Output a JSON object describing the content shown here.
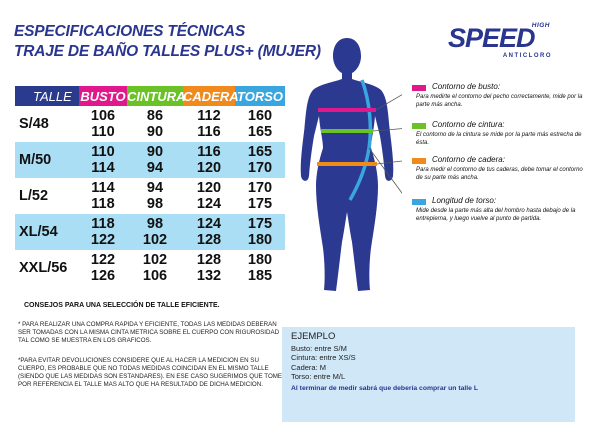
{
  "title": {
    "line1": "ESPECIFICACIONES TÉCNICAS",
    "line2": "TRAJE DE BAÑO TALLES PLUS+ (MUJER)"
  },
  "brand": {
    "top": "HIGH",
    "name": "SPEED",
    "sub": "ANTICLORO",
    "color": "#2a3590"
  },
  "table": {
    "headers": [
      "TALLE",
      "BUSTO",
      "CINTURA",
      "CADERA",
      "TORSO"
    ],
    "header_colors": [
      "#2a3a8c",
      "#e0188c",
      "#6ac226",
      "#f08a1c",
      "#39a6df"
    ],
    "rows": [
      {
        "size": "S/48",
        "busto": [
          "106",
          "110"
        ],
        "cintura": [
          "86",
          "90"
        ],
        "cadera": [
          "112",
          "116"
        ],
        "torso": [
          "160",
          "165"
        ]
      },
      {
        "size": "M/50",
        "busto": [
          "110",
          "114"
        ],
        "cintura": [
          "90",
          "94"
        ],
        "cadera": [
          "116",
          "120"
        ],
        "torso": [
          "165",
          "170"
        ]
      },
      {
        "size": "L/52",
        "busto": [
          "114",
          "118"
        ],
        "cintura": [
          "94",
          "98"
        ],
        "cadera": [
          "120",
          "124"
        ],
        "torso": [
          "170",
          "175"
        ]
      },
      {
        "size": "XL/54",
        "busto": [
          "118",
          "122"
        ],
        "cintura": [
          "98",
          "102"
        ],
        "cadera": [
          "124",
          "128"
        ],
        "torso": [
          "175",
          "180"
        ]
      },
      {
        "size": "XXL/56",
        "busto": [
          "122",
          "126"
        ],
        "cintura": [
          "102",
          "106"
        ],
        "cadera": [
          "128",
          "132"
        ],
        "torso": [
          "180",
          "185"
        ]
      }
    ]
  },
  "legend": [
    {
      "title": "Contorno de busto:",
      "desc": "Para medirte el contorno del pecho correctamente, mide por la parte más ancha.",
      "color": "#e0188c"
    },
    {
      "title": "Contorno de cintura:",
      "desc": "El contorno de la cintura se mide por la parte más estrecha de ésta.",
      "color": "#6ac226"
    },
    {
      "title": "Contorno de cadera:",
      "desc": "Para medir el contorno de tus caderas, debe tomar el contorno de su parte más ancha.",
      "color": "#f08a1c"
    },
    {
      "title": "Longitud de torso:",
      "desc": "Mide desde la parte más alta del hombro hasta debajo de la entrepierna, y luego vuelve al punto de partida.",
      "color": "#39a6df"
    }
  ],
  "tips": {
    "heading": "CONSEJOS PARA UNA SELECCIÓN DE TALLE EFICIENTE.",
    "tip1": "* PARA REALIZAR UNA COMPRA RAPIDA Y EFICIENTE, TODAS LAS MEDIDAS DEBERAN SER TOMADAS CON LA MISMA CINTA METRICA SOBRE EL CUERPO CON RIGUROSIDAD TAL COMO SE MUESTRA EN LOS GRAFICOS.",
    "tip2": "*PARA EVITAR DEVOLUCIONES CONSIDERE QUE AL HACER LA MEDICION EN SU CUERPO, ES PROBABLE QUE NO TODAS MEDIDAS COINCIDAN EN EL MISMO TALLE (SIENDO QUE LAS MEDIDAS SON ESTANDARES). EN ESE CASO SUGERIMOS QUE TOME POR REFERENCIA EL TALLE MAS ALTO QUE HA RESULTADO DE DICHA MEDICION."
  },
  "example": {
    "title": "EJEMPLO",
    "lines": [
      "Busto: entre S/M",
      "Cintura: entre XS/S",
      "Cadera: M",
      "Torso: entre M/L"
    ],
    "footer": "Al terminar de medir sabrá que debería comprar un talle L"
  }
}
